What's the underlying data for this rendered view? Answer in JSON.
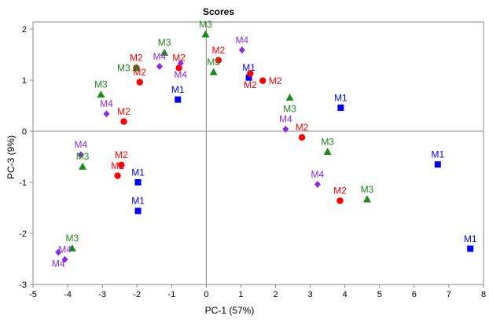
{
  "chart_data": {
    "type": "scatter",
    "title": "Scores",
    "xlabel": "PC-1 (57%)",
    "ylabel": "PC-3 (9%)",
    "xlim": [
      -5,
      8
    ],
    "ylim": [
      -3,
      2
    ],
    "xticks": [
      -5,
      -4,
      -3,
      -2,
      -1,
      0,
      1,
      2,
      3,
      4,
      5,
      6,
      7,
      8
    ],
    "yticks": [
      -3,
      -2,
      -1,
      0,
      1,
      2
    ],
    "grid": false,
    "legend": "none",
    "series": [
      {
        "name": "M1",
        "marker": "square",
        "color": "#0000ff",
        "points": [
          [
            -0.82,
            0.62
          ],
          [
            1.23,
            1.05
          ],
          [
            3.88,
            0.46
          ],
          [
            -1.97,
            -1.0
          ],
          [
            -1.97,
            -1.56
          ],
          [
            6.68,
            -0.65
          ],
          [
            7.62,
            -2.3
          ]
        ]
      },
      {
        "name": "M2",
        "marker": "circle",
        "color": "#ff0000",
        "points": [
          [
            -1.92,
            0.96
          ],
          [
            -2.38,
            0.19
          ],
          [
            -0.79,
            1.24
          ],
          [
            -2.02,
            1.24
          ],
          [
            0.35,
            1.39
          ],
          [
            1.27,
            1.13
          ],
          [
            1.63,
            0.99
          ],
          [
            2.76,
            -0.12
          ],
          [
            -2.45,
            -0.66
          ],
          [
            -2.56,
            -0.87
          ],
          [
            3.86,
            -1.36
          ]
        ]
      },
      {
        "name": "M3",
        "marker": "triangle",
        "color": "#1a8a1a",
        "points": [
          [
            -3.04,
            0.72
          ],
          [
            -2.02,
            1.24
          ],
          [
            -1.21,
            1.54
          ],
          [
            -0.02,
            1.9
          ],
          [
            0.21,
            1.16
          ],
          [
            2.41,
            0.66
          ],
          [
            3.5,
            -0.4
          ],
          [
            4.64,
            -1.33
          ],
          [
            -3.57,
            -0.69
          ],
          [
            -3.87,
            -2.29
          ]
        ]
      },
      {
        "name": "M4",
        "marker": "diamond",
        "color": "#8a2be2",
        "points": [
          [
            -2.88,
            0.34
          ],
          [
            -1.35,
            1.27
          ],
          [
            -0.74,
            1.33
          ],
          [
            1.03,
            1.59
          ],
          [
            2.29,
            0.04
          ],
          [
            3.21,
            -1.04
          ],
          [
            -3.62,
            -0.46
          ],
          [
            -4.27,
            -2.37
          ],
          [
            -4.08,
            -2.51
          ]
        ]
      }
    ]
  }
}
